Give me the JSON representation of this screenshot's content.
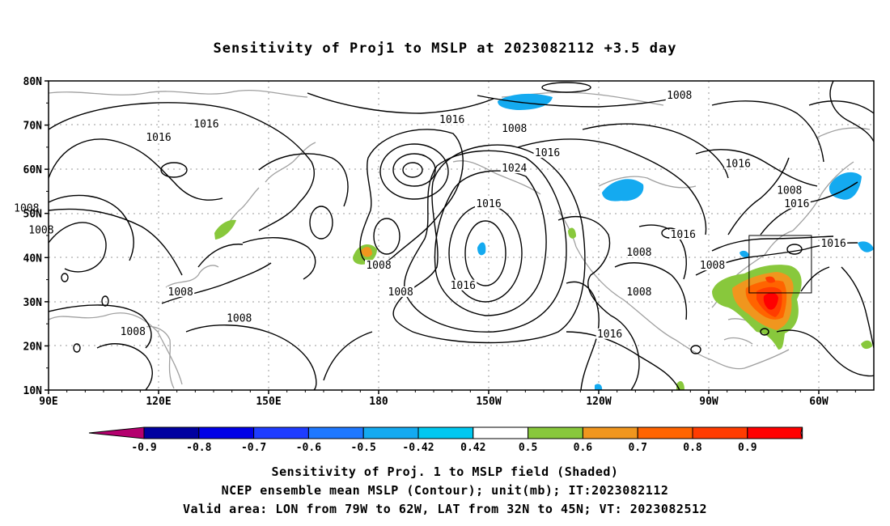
{
  "title": "Sensitivity of Proj1 to MSLP at 2023082112 +3.5 day",
  "map": {
    "lat_labels": [
      "80N",
      "70N",
      "60N",
      "50N",
      "40N",
      "30N",
      "20N",
      "10N"
    ],
    "lon_labels": [
      "90E",
      "120E",
      "150E",
      "180",
      "150W",
      "120W",
      "90W",
      "60W"
    ],
    "contour_labels": [
      {
        "text": "1016",
        "lon": -160.0,
        "lat": 71.0
      },
      {
        "text": "1016",
        "lon": -134.0,
        "lat": 63.5
      },
      {
        "text": "1016",
        "lon": -150.0,
        "lat": 52.0
      },
      {
        "text": "1008",
        "lon": -143.0,
        "lat": 69.0
      },
      {
        "text": "1008",
        "lon": -98.0,
        "lat": 76.5
      },
      {
        "text": "1024",
        "lon": -143.0,
        "lat": 60.0
      },
      {
        "text": "1016",
        "lon": -82.0,
        "lat": 61.0
      },
      {
        "text": "1008",
        "lon": -68.0,
        "lat": 55.0
      },
      {
        "text": "1016",
        "lon": -66.0,
        "lat": 52.0
      },
      {
        "text": "1016",
        "lon": -56.0,
        "lat": 43.0
      },
      {
        "text": "1016",
        "lon": -97.0,
        "lat": 45.0
      },
      {
        "text": "1008",
        "lon": -109.0,
        "lat": 41.0
      },
      {
        "text": "1008",
        "lon": -89.0,
        "lat": 38.0
      },
      {
        "text": "1008",
        "lon": -109.0,
        "lat": 32.0
      },
      {
        "text": "1016",
        "lon": -117.0,
        "lat": 22.5
      },
      {
        "text": "1016",
        "lon": -157.0,
        "lat": 33.5
      },
      {
        "text": "1008",
        "lon": -180.0,
        "lat": 38.0
      },
      {
        "text": "1008",
        "lon": -174.0,
        "lat": 32.0
      },
      {
        "text": "1016",
        "lon": 120.0,
        "lat": 67.0
      },
      {
        "text": "1016",
        "lon": 133.0,
        "lat": 70.0
      },
      {
        "text": "1008",
        "lon": 84.0,
        "lat": 51.0
      },
      {
        "text": "1008",
        "lon": 88.0,
        "lat": 46.0
      },
      {
        "text": "1008",
        "lon": 126.0,
        "lat": 32.0
      },
      {
        "text": "1008",
        "lon": 113.0,
        "lat": 23.0
      },
      {
        "text": "1008",
        "lon": 142.0,
        "lat": 26.0
      }
    ]
  },
  "colorbar": {
    "labels": [
      "-0.9",
      "-0.8",
      "-0.7",
      "-0.6",
      "-0.5",
      "-0.42",
      "0.42",
      "0.5",
      "0.6",
      "0.7",
      "0.8",
      "0.9"
    ],
    "colors": [
      "#b4006e",
      "#0000a0",
      "#0000e6",
      "#1e3cff",
      "#1e78ff",
      "#14aaf0",
      "#00c8f0",
      "#ffffff",
      "#88c83c",
      "#f0961e",
      "#ff6400",
      "#ff3c00",
      "#ff0000",
      "#ff96c8"
    ]
  },
  "captions": [
    "Sensitivity of Proj. 1 to MSLP field (Shaded)",
    "NCEP ensemble mean MSLP (Contour); unit(mb); IT:2023082112",
    "Valid area: LON from 79W to 62W, LAT from 32N to 45N; VT: 2023082512"
  ],
  "valid_area": {
    "lon_min": -79,
    "lon_max": -62,
    "lat_min": 32,
    "lat_max": 45
  }
}
